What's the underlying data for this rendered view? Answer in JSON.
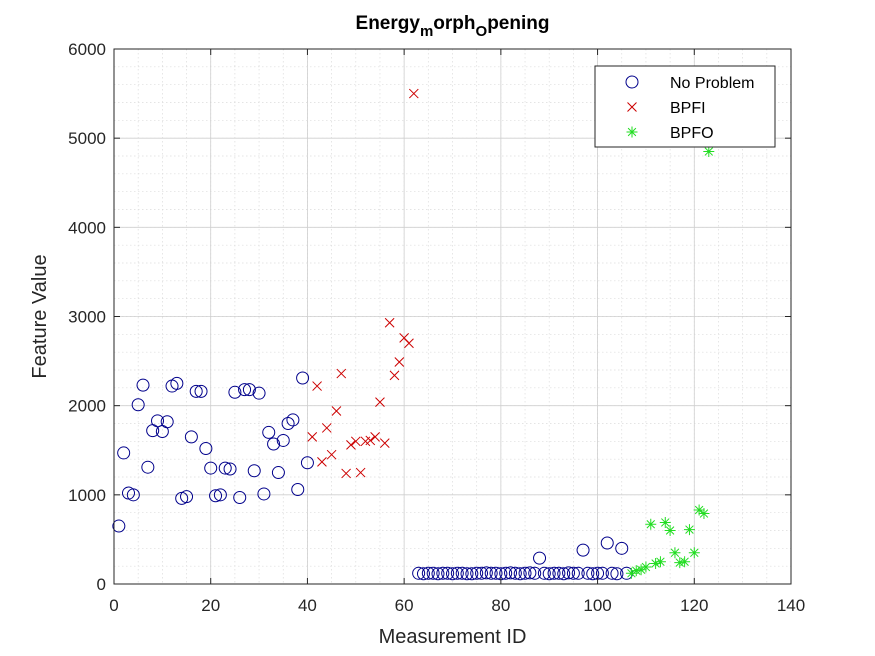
{
  "chart_data": {
    "type": "scatter",
    "title": {
      "parts": [
        {
          "text": "Energy",
          "sub": false
        },
        {
          "text": "m",
          "sub": true
        },
        {
          "text": "orph",
          "sub": false
        },
        {
          "text": "O",
          "sub": true
        },
        {
          "text": "pening",
          "sub": false
        }
      ]
    },
    "xlabel": "Measurement ID",
    "ylabel": "Feature Value",
    "xlim": [
      0,
      140
    ],
    "ylim": [
      0,
      6000
    ],
    "xticks": [
      0,
      20,
      40,
      60,
      80,
      100,
      120,
      140
    ],
    "yticks": [
      0,
      1000,
      2000,
      3000,
      4000,
      5000,
      6000
    ],
    "xtick_labels": [
      "0",
      "20",
      "40",
      "60",
      "80",
      "100",
      "120",
      "140"
    ],
    "ytick_labels": [
      "0",
      "1000",
      "2000",
      "3000",
      "4000",
      "5000",
      "6000"
    ],
    "grid": true,
    "minor_grid": true,
    "legend_position": "top-right",
    "series": [
      {
        "name": "No Problem",
        "marker": "circle",
        "color": "#00008b",
        "points": [
          [
            1,
            650
          ],
          [
            2,
            1470
          ],
          [
            3,
            1020
          ],
          [
            4,
            1000
          ],
          [
            5,
            2010
          ],
          [
            6,
            2230
          ],
          [
            7,
            1310
          ],
          [
            8,
            1720
          ],
          [
            9,
            1830
          ],
          [
            10,
            1710
          ],
          [
            11,
            1820
          ],
          [
            12,
            2220
          ],
          [
            13,
            2250
          ],
          [
            14,
            960
          ],
          [
            15,
            980
          ],
          [
            16,
            1650
          ],
          [
            17,
            2160
          ],
          [
            18,
            2160
          ],
          [
            19,
            1520
          ],
          [
            20,
            1300
          ],
          [
            21,
            990
          ],
          [
            22,
            1000
          ],
          [
            23,
            1300
          ],
          [
            24,
            1290
          ],
          [
            25,
            2150
          ],
          [
            26,
            970
          ],
          [
            27,
            2180
          ],
          [
            28,
            2180
          ],
          [
            29,
            1270
          ],
          [
            30,
            2140
          ],
          [
            31,
            1010
          ],
          [
            32,
            1700
          ],
          [
            33,
            1570
          ],
          [
            34,
            1250
          ],
          [
            35,
            1610
          ],
          [
            36,
            1800
          ],
          [
            37,
            1840
          ],
          [
            38,
            1060
          ],
          [
            39,
            2310
          ],
          [
            40,
            1360
          ],
          [
            63,
            120
          ],
          [
            64,
            115
          ],
          [
            65,
            120
          ],
          [
            66,
            120
          ],
          [
            67,
            115
          ],
          [
            68,
            120
          ],
          [
            69,
            120
          ],
          [
            70,
            115
          ],
          [
            71,
            120
          ],
          [
            72,
            120
          ],
          [
            73,
            115
          ],
          [
            74,
            115
          ],
          [
            75,
            120
          ],
          [
            76,
            120
          ],
          [
            77,
            125
          ],
          [
            78,
            120
          ],
          [
            79,
            120
          ],
          [
            80,
            115
          ],
          [
            81,
            120
          ],
          [
            82,
            125
          ],
          [
            83,
            120
          ],
          [
            84,
            115
          ],
          [
            85,
            120
          ],
          [
            86,
            125
          ],
          [
            87,
            120
          ],
          [
            88,
            290
          ],
          [
            89,
            120
          ],
          [
            90,
            115
          ],
          [
            91,
            120
          ],
          [
            92,
            120
          ],
          [
            93,
            115
          ],
          [
            94,
            125
          ],
          [
            95,
            120
          ],
          [
            96,
            120
          ],
          [
            97,
            380
          ],
          [
            98,
            120
          ],
          [
            99,
            115
          ],
          [
            100,
            120
          ],
          [
            101,
            120
          ],
          [
            102,
            460
          ],
          [
            103,
            120
          ],
          [
            104,
            115
          ],
          [
            105,
            400
          ],
          [
            106,
            120
          ]
        ]
      },
      {
        "name": "BPFI",
        "marker": "x",
        "color": "#cc0000",
        "points": [
          [
            41,
            1650
          ],
          [
            42,
            2220
          ],
          [
            43,
            1370
          ],
          [
            44,
            1750
          ],
          [
            45,
            1450
          ],
          [
            46,
            1940
          ],
          [
            47,
            2360
          ],
          [
            48,
            1240
          ],
          [
            49,
            1560
          ],
          [
            50,
            1600
          ],
          [
            51,
            1250
          ],
          [
            52,
            1600
          ],
          [
            53,
            1610
          ],
          [
            54,
            1650
          ],
          [
            55,
            2040
          ],
          [
            56,
            1580
          ],
          [
            57,
            2930
          ],
          [
            58,
            2340
          ],
          [
            59,
            2490
          ],
          [
            60,
            2760
          ],
          [
            61,
            2700
          ],
          [
            62,
            5500
          ]
        ]
      },
      {
        "name": "BPFO",
        "marker": "asterisk",
        "color": "#22dd22",
        "points": [
          [
            107,
            120
          ],
          [
            108,
            150
          ],
          [
            109,
            160
          ],
          [
            110,
            190
          ],
          [
            111,
            670
          ],
          [
            112,
            230
          ],
          [
            113,
            250
          ],
          [
            114,
            690
          ],
          [
            115,
            600
          ],
          [
            116,
            350
          ],
          [
            117,
            240
          ],
          [
            118,
            250
          ],
          [
            119,
            610
          ],
          [
            120,
            350
          ],
          [
            121,
            830
          ],
          [
            122,
            790
          ],
          [
            123,
            4850
          ]
        ]
      }
    ]
  }
}
